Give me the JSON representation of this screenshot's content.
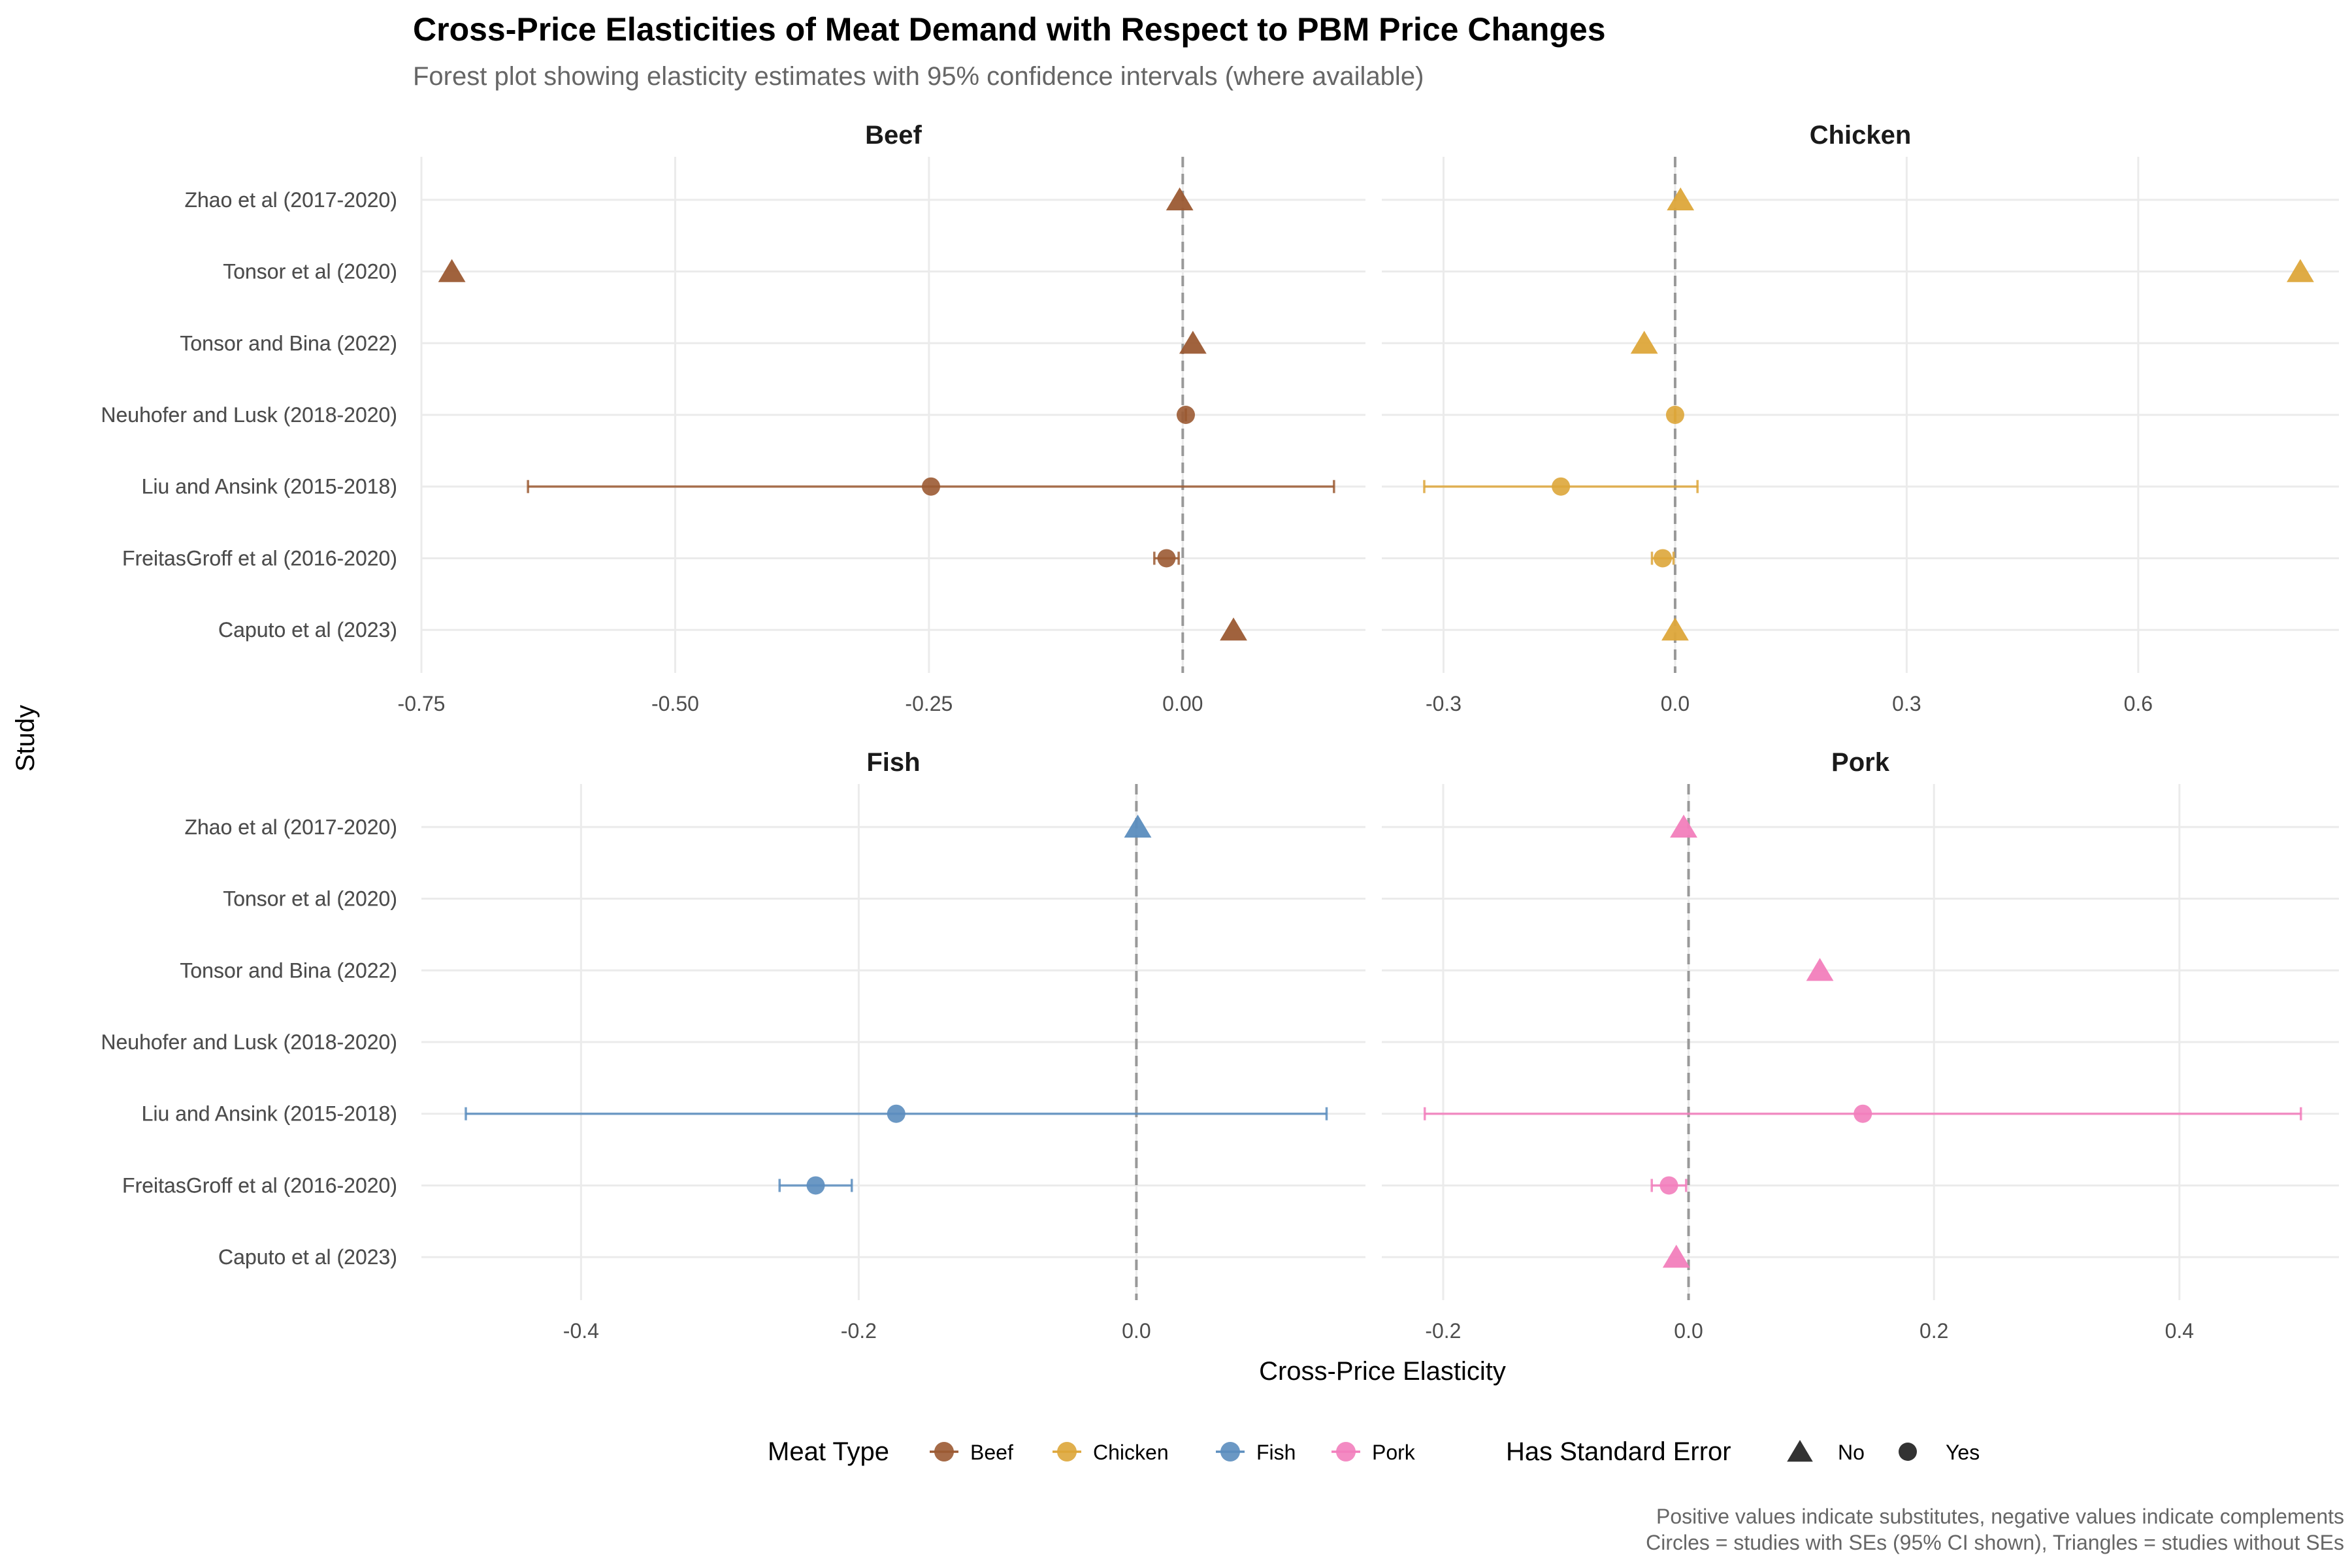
{
  "title": "Cross-Price Elasticities of Meat Demand with Respect to PBM Price Changes",
  "subtitle": "Forest plot showing elasticity estimates with 95% confidence intervals (where available)",
  "caption": [
    "Positive values indicate substitutes, negative values indicate complements",
    "Circles = studies with SEs (95% CI shown), Triangles = studies without SEs"
  ],
  "colors": {
    "Beef": "#9B5A33",
    "Chicken": "#DDA63A",
    "Fish": "#5B8DBE",
    "Pork": "#F27EBC",
    "reference_line": "#999999",
    "grid": "#ebebeb"
  },
  "chart_data": {
    "type": "scatter",
    "subtype": "forest-plot",
    "xlabel": "Cross-Price Elasticity",
    "ylabel": "Study",
    "reference_line_x": 0,
    "grid": true,
    "legend_position": "bottom",
    "studies": [
      "Caputo et al (2023)",
      "FreitasGroff et al (2016-2020)",
      "Liu and Ansink (2015-2018)",
      "Neuhofer and Lusk (2018-2020)",
      "Tonsor and Bina (2022)",
      "Tonsor et al (2020)",
      "Zhao et al (2017-2020)"
    ],
    "legend": {
      "color_title": "Meat Type",
      "color_entries": [
        "Beef",
        "Chicken",
        "Fish",
        "Pork"
      ],
      "shape_title": "Has Standard Error",
      "shape_entries": [
        {
          "label": "No",
          "shape": "triangle"
        },
        {
          "label": "Yes",
          "shape": "circle"
        }
      ]
    },
    "panels": [
      {
        "name": "Beef",
        "xlim": [
          -0.75,
          0.18
        ],
        "xticks": [
          -0.75,
          -0.5,
          -0.25,
          0.0
        ],
        "xtick_labels": [
          "-0.75",
          "-0.50",
          "-0.25",
          "0.00"
        ],
        "points": [
          {
            "study": "Zhao et al (2017-2020)",
            "estimate": -0.003,
            "has_se": false
          },
          {
            "study": "Tonsor et al (2020)",
            "estimate": -0.72,
            "has_se": false
          },
          {
            "study": "Tonsor and Bina (2022)",
            "estimate": 0.01,
            "has_se": false
          },
          {
            "study": "Neuhofer and Lusk (2018-2020)",
            "estimate": 0.003,
            "has_se": true,
            "ci": [
              0.003,
              0.003
            ]
          },
          {
            "study": "Liu and Ansink (2015-2018)",
            "estimate": -0.248,
            "has_se": true,
            "ci": [
              -0.645,
              0.149
            ]
          },
          {
            "study": "FreitasGroff et al (2016-2020)",
            "estimate": -0.016,
            "has_se": true,
            "ci": [
              -0.028,
              -0.004
            ]
          },
          {
            "study": "Caputo et al (2023)",
            "estimate": 0.05,
            "has_se": false
          }
        ]
      },
      {
        "name": "Chicken",
        "xlim": [
          -0.38,
          0.86
        ],
        "xticks": [
          -0.3,
          0.0,
          0.3,
          0.6
        ],
        "xtick_labels": [
          "-0.3",
          "0.0",
          "0.3",
          "0.6"
        ],
        "points": [
          {
            "study": "Zhao et al (2017-2020)",
            "estimate": 0.007,
            "has_se": false
          },
          {
            "study": "Tonsor et al (2020)",
            "estimate": 0.81,
            "has_se": false
          },
          {
            "study": "Tonsor and Bina (2022)",
            "estimate": -0.04,
            "has_se": false
          },
          {
            "study": "Neuhofer and Lusk (2018-2020)",
            "estimate": 0.0,
            "has_se": true,
            "ci": [
              0.0,
              0.0
            ]
          },
          {
            "study": "Liu and Ansink (2015-2018)",
            "estimate": -0.148,
            "has_se": true,
            "ci": [
              -0.325,
              0.029
            ]
          },
          {
            "study": "FreitasGroff et al (2016-2020)",
            "estimate": -0.016,
            "has_se": true,
            "ci": [
              -0.03,
              -0.002
            ]
          },
          {
            "study": "Caputo et al (2023)",
            "estimate": 0.0,
            "has_se": false
          }
        ]
      },
      {
        "name": "Fish",
        "xlim": [
          -0.515,
          0.165
        ],
        "xticks": [
          -0.4,
          -0.2,
          0.0
        ],
        "xtick_labels": [
          "-0.4",
          "-0.2",
          "0.0"
        ],
        "points": [
          {
            "study": "Zhao et al (2017-2020)",
            "estimate": 0.001,
            "has_se": false
          },
          {
            "study": "Liu and Ansink (2015-2018)",
            "estimate": -0.173,
            "has_se": true,
            "ci": [
              -0.483,
              0.137
            ]
          },
          {
            "study": "FreitasGroff et al (2016-2020)",
            "estimate": -0.231,
            "has_se": true,
            "ci": [
              -0.257,
              -0.205
            ]
          }
        ]
      },
      {
        "name": "Pork",
        "xlim": [
          -0.25,
          0.53
        ],
        "xticks": [
          -0.2,
          0.0,
          0.2,
          0.4
        ],
        "xtick_labels": [
          "-0.2",
          "0.0",
          "0.2",
          "0.4"
        ],
        "points": [
          {
            "study": "Zhao et al (2017-2020)",
            "estimate": -0.004,
            "has_se": false
          },
          {
            "study": "Tonsor and Bina (2022)",
            "estimate": 0.107,
            "has_se": false
          },
          {
            "study": "Liu and Ansink (2015-2018)",
            "estimate": 0.142,
            "has_se": true,
            "ci": [
              -0.215,
              0.499
            ]
          },
          {
            "study": "FreitasGroff et al (2016-2020)",
            "estimate": -0.016,
            "has_se": true,
            "ci": [
              -0.03,
              -0.002
            ]
          },
          {
            "study": "Caputo et al (2023)",
            "estimate": -0.01,
            "has_se": false
          }
        ]
      }
    ]
  }
}
